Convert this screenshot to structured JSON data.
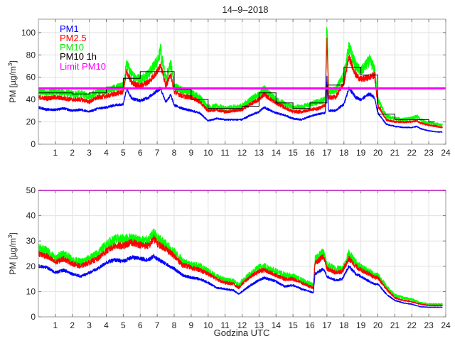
{
  "chart_data": [
    {
      "type": "line",
      "title": "14–9–2018",
      "xlabel": "",
      "ylabel": "PM [µg/m³]",
      "ylabel_parts": [
        "PM [µg/m",
        "3",
        "]"
      ],
      "xlim": [
        0,
        24
      ],
      "ylim": [
        0,
        112
      ],
      "xticks": [
        1,
        2,
        3,
        4,
        5,
        6,
        7,
        8,
        9,
        10,
        11,
        12,
        13,
        14,
        15,
        16,
        17,
        18,
        19,
        20,
        21,
        22,
        23,
        24
      ],
      "yticks": [
        0,
        20,
        40,
        60,
        80,
        100
      ],
      "grid": true,
      "legend_position": "top-left",
      "legend": [
        "PM1",
        "PM2.5",
        "PM10",
        "PM10 1h",
        "Limit PM10"
      ],
      "colors": {
        "PM1": "#0000ff",
        "PM2.5": "#ff0000",
        "PM10": "#00ff00",
        "PM10 1h": "#000000",
        "Limit PM10": "#ff00ff"
      },
      "x": [
        0,
        0.5,
        1,
        1.5,
        2,
        2.5,
        3,
        3.5,
        4,
        4.5,
        5,
        5.2,
        5.5,
        6,
        6.5,
        7,
        7.2,
        7.5,
        7.8,
        8,
        8.5,
        9,
        9.5,
        10,
        10.5,
        11,
        11.5,
        12,
        12.5,
        13,
        13.3,
        13.7,
        14,
        14.5,
        15,
        15.5,
        16,
        16.5,
        16.9,
        17.0,
        17.1,
        17.5,
        18,
        18.3,
        18.7,
        19,
        19.5,
        19.8,
        20,
        20.5,
        21,
        21.5,
        22,
        22.3,
        22.5,
        23,
        23.5,
        23.8
      ],
      "series": [
        {
          "name": "PM10",
          "values": [
            47,
            46,
            47,
            46,
            45,
            45,
            43,
            47,
            48,
            50,
            52,
            72,
            62,
            58,
            63,
            75,
            84,
            58,
            73,
            52,
            48,
            46,
            42,
            33,
            34,
            32,
            33,
            34,
            40,
            44,
            50,
            44,
            40,
            36,
            33,
            33,
            36,
            38,
            40,
            112,
            48,
            48,
            62,
            87,
            70,
            65,
            75,
            68,
            40,
            25,
            23,
            22,
            23,
            25,
            22,
            19,
            18,
            17
          ]
        },
        {
          "name": "PM2.5",
          "values": [
            42,
            41,
            42,
            41,
            40,
            40,
            38,
            42,
            43,
            45,
            47,
            65,
            55,
            52,
            56,
            65,
            72,
            52,
            63,
            47,
            43,
            42,
            38,
            30,
            31,
            29,
            30,
            31,
            36,
            40,
            45,
            40,
            37,
            33,
            29,
            29,
            31,
            32,
            35,
            95,
            42,
            42,
            55,
            78,
            62,
            58,
            60,
            62,
            35,
            22,
            20,
            20,
            20,
            21,
            19,
            17,
            16,
            15
          ]
        },
        {
          "name": "PM1",
          "values": [
            33,
            31,
            31,
            32,
            30,
            31,
            29,
            32,
            33,
            35,
            36,
            50,
            41,
            39,
            42,
            48,
            50,
            38,
            44,
            35,
            32,
            30,
            28,
            21,
            23,
            22,
            22,
            22,
            26,
            29,
            33,
            30,
            28,
            26,
            23,
            22,
            25,
            27,
            28,
            60,
            30,
            30,
            36,
            50,
            42,
            40,
            45,
            42,
            28,
            18,
            16,
            15,
            15,
            16,
            14,
            12,
            11,
            11
          ]
        }
      ],
      "hourly_pm10": {
        "name": "PM10 1h",
        "values": [
          46,
          46,
          45,
          46,
          51,
          59,
          65,
          65,
          49,
          40,
          32,
          32,
          34,
          46,
          37,
          32,
          37,
          53,
          69,
          62,
          27,
          22,
          22,
          20
        ]
      },
      "limit": {
        "name": "Limit PM10",
        "value": 50
      }
    },
    {
      "type": "line",
      "title": "",
      "xlabel": "Godzina UTC",
      "ylabel": "PM [µg/m³]",
      "ylabel_parts": [
        "PM [µg/m",
        "3",
        "]"
      ],
      "xlim": [
        0,
        24
      ],
      "ylim": [
        0,
        50
      ],
      "xticks": [
        1,
        2,
        3,
        4,
        5,
        6,
        7,
        8,
        9,
        10,
        11,
        12,
        13,
        14,
        15,
        16,
        17,
        18,
        19,
        20,
        21,
        22,
        23,
        24
      ],
      "yticks": [
        0,
        10,
        20,
        30,
        40,
        50
      ],
      "grid": true,
      "x": [
        0,
        0.5,
        1,
        1.5,
        2,
        2.5,
        3,
        3.5,
        4,
        4.5,
        5,
        5.5,
        6,
        6.5,
        6.8,
        7,
        7.5,
        8,
        8.5,
        9,
        9.5,
        10,
        10.5,
        11,
        11.5,
        11.8,
        12,
        12.5,
        13,
        13.3,
        14,
        14.5,
        15,
        15.5,
        16,
        16.2,
        16.3,
        16.8,
        17,
        17.5,
        17.9,
        18.3,
        18.7,
        19,
        19.5,
        19.8,
        20,
        20.5,
        21,
        21.5,
        22,
        22.5,
        23,
        23.5,
        23.8
      ],
      "series": [
        {
          "name": "PM10",
          "values": [
            27,
            26,
            23,
            25,
            22.5,
            21.5,
            23,
            25,
            28.5,
            30.5,
            30.5,
            31,
            30,
            30,
            33,
            31,
            28.5,
            25.5,
            22,
            20.5,
            20,
            18,
            16,
            14.5,
            14,
            12.5,
            14,
            17,
            19.5,
            20,
            18,
            16.5,
            16,
            14.5,
            13,
            12.5,
            23,
            25.5,
            20.5,
            19,
            19,
            25,
            21.5,
            19.5,
            18,
            16.5,
            16.5,
            12,
            8.5,
            7.5,
            7,
            5.5,
            5,
            5,
            5
          ]
        },
        {
          "name": "PM2.5",
          "values": [
            25,
            24,
            21.5,
            23,
            21,
            20,
            21.5,
            23,
            26,
            28,
            28,
            29.5,
            28.5,
            28,
            31,
            29,
            27,
            24,
            20.5,
            19.5,
            18.5,
            17,
            15,
            13.5,
            13,
            11.5,
            13,
            16,
            18,
            18.5,
            16.5,
            15,
            15,
            13.5,
            12,
            11.5,
            21,
            24,
            19,
            17.5,
            18,
            23,
            20,
            18.5,
            17,
            15.5,
            15.5,
            11,
            7.5,
            6.5,
            6,
            5,
            4.5,
            4.5,
            4.5
          ]
        },
        {
          "name": "PM1",
          "values": [
            20,
            19.5,
            17.5,
            18.5,
            17,
            16,
            17.5,
            19,
            21.5,
            22.5,
            22,
            23.5,
            23,
            22.5,
            24,
            23,
            21,
            19,
            16.5,
            15.5,
            15,
            13.5,
            11.5,
            11,
            10.5,
            9,
            10,
            12.5,
            14.5,
            15.5,
            14,
            12,
            12.5,
            11,
            10,
            9.5,
            17,
            19,
            16,
            14.5,
            15,
            20,
            17,
            16,
            14,
            13,
            13,
            9,
            6.5,
            5.5,
            5,
            4,
            3.8,
            3.8,
            3.8
          ]
        }
      ],
      "limit": {
        "name": "Limit PM10",
        "value": 50
      }
    }
  ]
}
